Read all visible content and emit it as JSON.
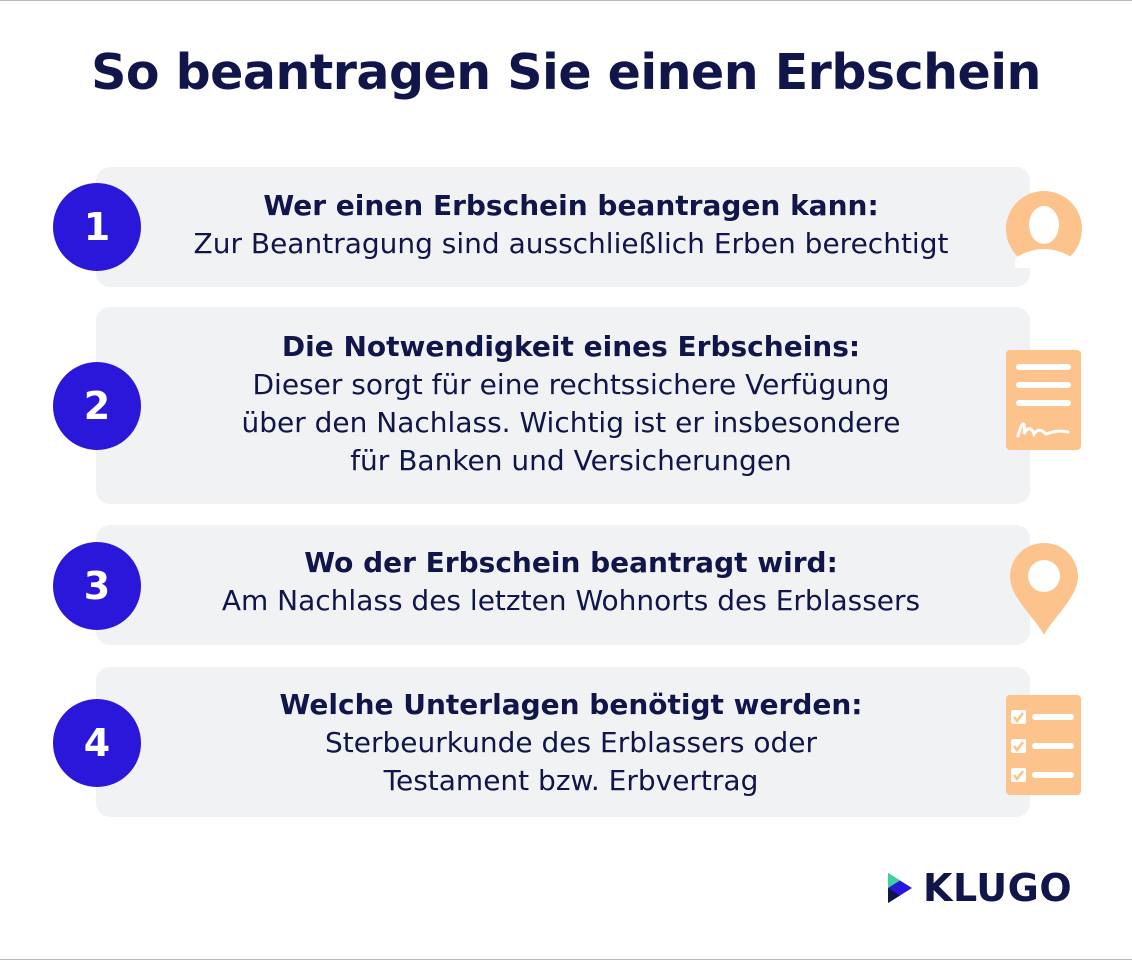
{
  "title": "So beantragen Sie einen Erbschein",
  "colors": {
    "navy": "#10154a",
    "badge": "#2a17d9",
    "icon": "#fdc38c",
    "card": "#f1f2f4"
  },
  "steps": [
    {
      "number": "1",
      "heading": "Wer einen Erbschein beantragen kann:",
      "body": "Zur Beantragung sind ausschließlich Erben berechtigt",
      "icon": "person-icon"
    },
    {
      "number": "2",
      "heading": "Die Notwendigkeit eines Erbscheins:",
      "body": "Dieser sorgt für eine rechtssichere Verfügung\nüber den Nachlass. Wichtig ist er insbesondere\nfür Banken und Versicherungen",
      "icon": "signed-document-icon"
    },
    {
      "number": "3",
      "heading": "Wo der Erbschein beantragt wird:",
      "body": "Am Nachlass des letzten Wohnorts des Erblassers",
      "icon": "location-pin-icon"
    },
    {
      "number": "4",
      "heading": "Welche Unterlagen benötigt werden:",
      "body": "Sterbeurkunde des Erblassers oder\nTestament bzw. Erbvertrag",
      "icon": "checklist-icon"
    }
  ],
  "logo": {
    "text": "KLUGO",
    "icon": "play-logo-icon"
  }
}
